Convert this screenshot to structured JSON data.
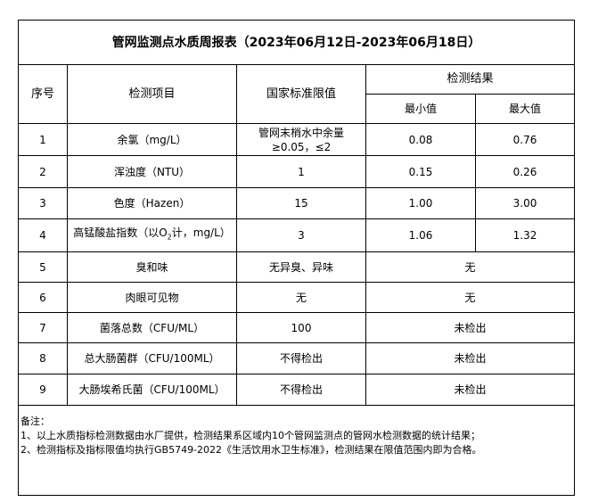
{
  "title": "管网监测点水质周报表（2023年06月12日-2023年06月18日）",
  "headers": {
    "seq": "序号",
    "item": "检测项目",
    "standard": "国家标准限值",
    "result": "检测结果",
    "min": "最小值",
    "max": "最大值"
  },
  "rows": [
    {
      "seq": "1",
      "item": "余氯（mg/L）",
      "standard": "管网末梢水中余量≥0.05，≤2",
      "min": "0.08",
      "max": "0.76"
    },
    {
      "seq": "2",
      "item": "浑浊度（NTU）",
      "standard": "1",
      "min": "0.15",
      "max": "0.26"
    },
    {
      "seq": "3",
      "item": "色度（Hazen）",
      "standard": "15",
      "min": "1.00",
      "max": "3.00"
    },
    {
      "seq": "4",
      "item_pre": "高锰酸盐指数（以O",
      "item_sub": "2",
      "item_post": "计，mg/L）",
      "standard": "3",
      "min": "1.06",
      "max": "1.32"
    },
    {
      "seq": "5",
      "item": "臭和味",
      "standard": "无异臭、异味",
      "result": "无"
    },
    {
      "seq": "6",
      "item": "肉眼可见物",
      "standard": "无",
      "result": "无"
    },
    {
      "seq": "7",
      "item": "菌落总数（CFU/ML）",
      "standard": "100",
      "result": "未检出"
    },
    {
      "seq": "8",
      "item": "总大肠菌群（CFU/100ML）",
      "standard": "不得检出",
      "result": "未检出"
    },
    {
      "seq": "9",
      "item": "大肠埃希氏菌（CFU/100ML）",
      "standard": "不得检出",
      "result": "未检出"
    }
  ],
  "notes": {
    "heading": "备注：",
    "lines": [
      "1、以上水质指标检测数据由水厂提供，检测结果系区域内10个管网监测点的管网水检测数据的统计结果；",
      "2、检测指标及指标限值均执行GB5749-2022《生活饮用水卫生标准》，检测结果在限值范围内即为合格。"
    ]
  }
}
